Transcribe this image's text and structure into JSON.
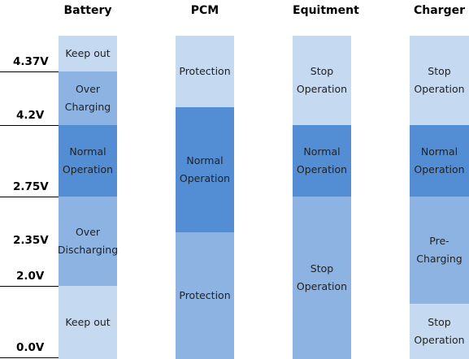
{
  "columns": [
    {
      "header": "Battery",
      "segments": [
        {
          "label": "Keep out",
          "tone": "light"
        },
        {
          "label": "Over\nCharging",
          "tone": "mid"
        },
        {
          "label": "Normal\nOperation",
          "tone": "dark"
        },
        {
          "label": "Over\nDischarging",
          "tone": "mid"
        },
        {
          "label": "Keep out",
          "tone": "light"
        }
      ]
    },
    {
      "header": "PCM",
      "segments": [
        {
          "label": "Protection",
          "tone": "light"
        },
        {
          "label": "Normal\nOperation",
          "tone": "dark"
        },
        {
          "label": "Protection",
          "tone": "mid"
        }
      ]
    },
    {
      "header": "Equitment",
      "segments": [
        {
          "label": "Stop\nOperation",
          "tone": "light"
        },
        {
          "label": "Normal\nOperation",
          "tone": "dark"
        },
        {
          "label": "Stop\nOperation",
          "tone": "mid"
        }
      ]
    },
    {
      "header": "Charger",
      "segments": [
        {
          "label": "Stop\nOperation",
          "tone": "light"
        },
        {
          "label": "Normal\nOperation",
          "tone": "dark"
        },
        {
          "label": "Pre-\nCharging",
          "tone": "mid"
        },
        {
          "label": "Stop\nOperation",
          "tone": "light"
        }
      ]
    }
  ],
  "voltage_levels": [
    "4.37V",
    "4.2V",
    "2.75V",
    "2.35V",
    "2.0V",
    "0.0V"
  ],
  "colors": {
    "light": "#c5d9f1",
    "mid": "#8db3e2",
    "dark": "#538ed5"
  }
}
